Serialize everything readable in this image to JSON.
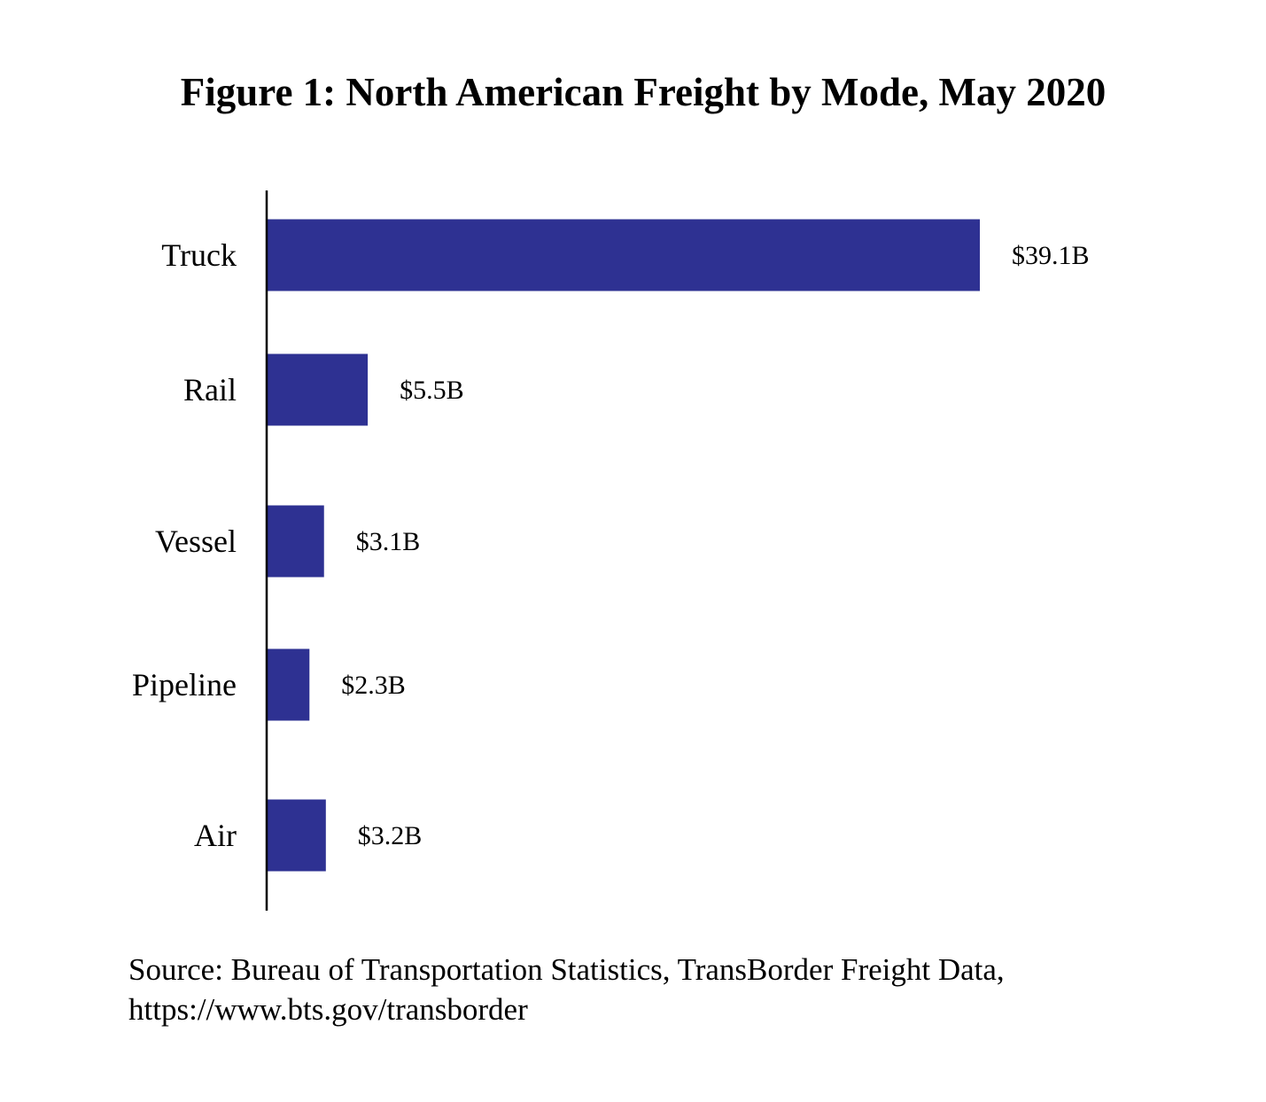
{
  "chart_data": {
    "type": "bar",
    "orientation": "horizontal",
    "title": "Figure 1: North American Freight by Mode, May 2020",
    "categories": [
      "Truck",
      "Rail",
      "Vessel",
      "Pipeline",
      "Air"
    ],
    "values": [
      39.1,
      5.5,
      3.1,
      2.3,
      3.2
    ],
    "data_labels": [
      "$39.1B",
      "$5.5B",
      "$3.1B",
      "$2.3B",
      "$3.2B"
    ],
    "unit": "billion USD",
    "bar_color": "#2e3192",
    "grid": false,
    "legend": "none",
    "source_line1": "Source: Bureau of Transportation Statistics, TransBorder Freight Data,",
    "source_line2": "https://www.bts.gov/transborder"
  }
}
